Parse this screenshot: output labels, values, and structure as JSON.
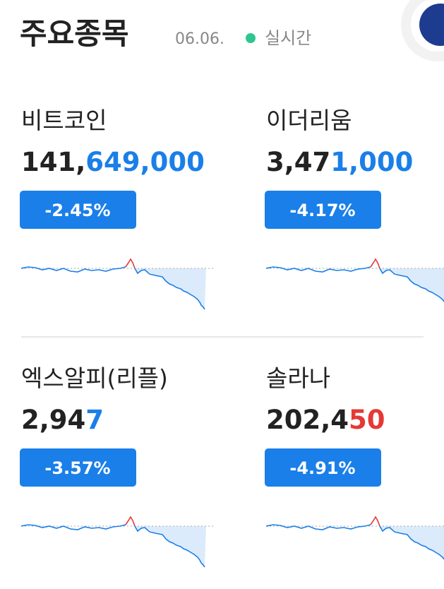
{
  "header": {
    "title": "주요종목",
    "date": "06.06.",
    "status": "실시간"
  },
  "cards": [
    {
      "name": "비트코인",
      "price_fixed": "141,",
      "price_changed": "649,000",
      "changed_color": "#1a7fe8",
      "change": "-2.45%"
    },
    {
      "name": "이더리움",
      "price_fixed": "3,47",
      "price_changed": "1,000",
      "changed_color": "#1a7fe8",
      "change": "-4.17%"
    },
    {
      "name": "엑스알피(리플)",
      "price_fixed": "2,94",
      "price_changed": "7",
      "changed_color": "#1a7fe8",
      "change": "-3.57%"
    },
    {
      "name": "솔라나",
      "price_fixed": "202,4",
      "price_changed": "50",
      "changed_color": "#e53935",
      "change": "-4.91%"
    }
  ]
}
